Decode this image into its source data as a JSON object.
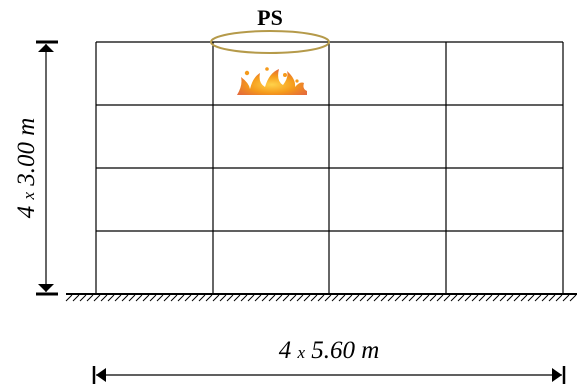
{
  "diagram": {
    "label_top": "PS",
    "dimension_vertical": {
      "count": "4",
      "times": "x",
      "value": "3.00 m"
    },
    "dimension_horizontal": {
      "count": "4",
      "times": "x",
      "value": "5.60 m"
    },
    "grid": {
      "bays": 4,
      "storeys": 4
    },
    "fire_bay_index": 1,
    "fire_storey_from_top": 0,
    "colors": {
      "lines": "#000000",
      "ellipse": "#b59a4a",
      "fire_core": "#ffd24a",
      "fire_mid": "#f59a1b",
      "fire_outer": "#e0521a"
    }
  }
}
